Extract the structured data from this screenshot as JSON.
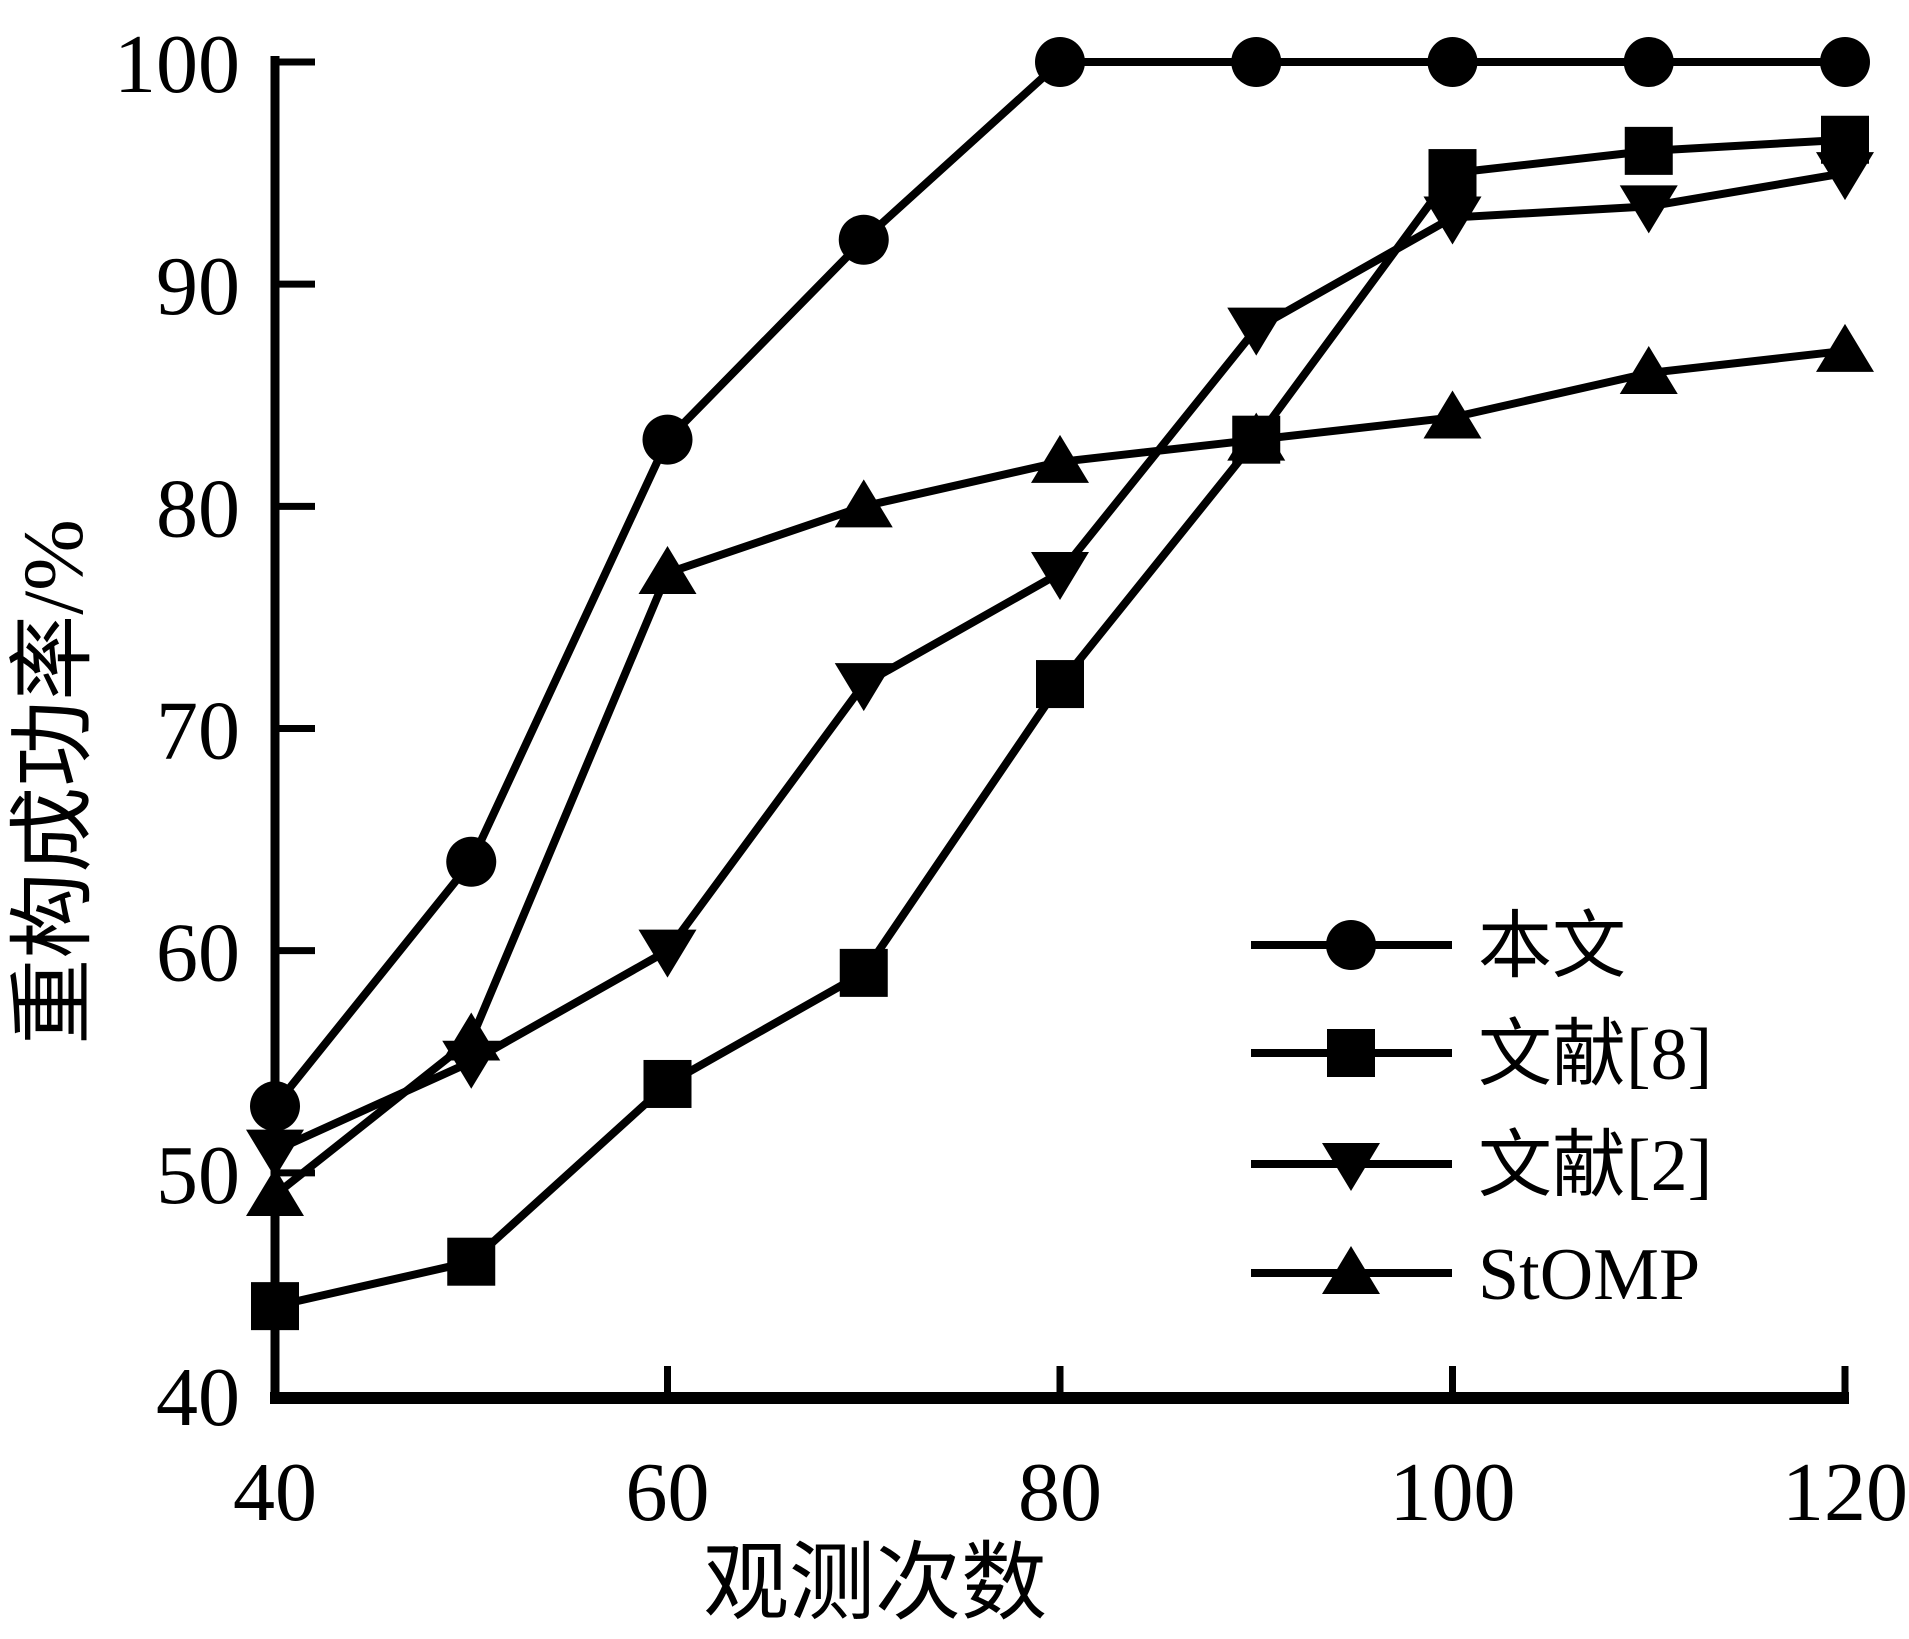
{
  "chart_data": {
    "type": "line",
    "title": "",
    "xlabel": "观测次数",
    "ylabel": "重构成功率/%",
    "xlim": [
      40,
      120
    ],
    "ylim": [
      40,
      100
    ],
    "grid": false,
    "x": [
      40,
      50,
      60,
      70,
      80,
      90,
      100,
      110,
      120
    ],
    "x_tick_labels": [
      "40",
      "60",
      "80",
      "100",
      "120"
    ],
    "x_tick_values": [
      40,
      60,
      80,
      100,
      120
    ],
    "x_tick_marks": [
      60,
      80,
      100,
      120
    ],
    "y_tick_labels": [
      "40",
      "50",
      "60",
      "70",
      "80",
      "90",
      "100"
    ],
    "y_tick_values": [
      40,
      50,
      60,
      70,
      80,
      90,
      100
    ],
    "y_tick_marks": [
      50,
      60,
      70,
      80,
      90,
      100
    ],
    "legend_position": "lower-right",
    "series": [
      {
        "name": "本文",
        "marker": "circle",
        "values": [
          53,
          64,
          83,
          92,
          100,
          100,
          100,
          100,
          100
        ]
      },
      {
        "name": "文献[8]",
        "marker": "square",
        "values": [
          44,
          46,
          54,
          59,
          72,
          83,
          95,
          96,
          96.5
        ]
      },
      {
        "name": "文献[2]",
        "marker": "triangle-down",
        "values": [
          51,
          55,
          60,
          72,
          77,
          88,
          93,
          93.5,
          95
        ]
      },
      {
        "name": "StOMP",
        "marker": "triangle-up",
        "values": [
          49,
          56,
          77,
          80,
          82,
          83,
          84,
          86,
          87
        ]
      }
    ],
    "colors": {
      "foreground": "#000000",
      "background": "#ffffff"
    }
  }
}
